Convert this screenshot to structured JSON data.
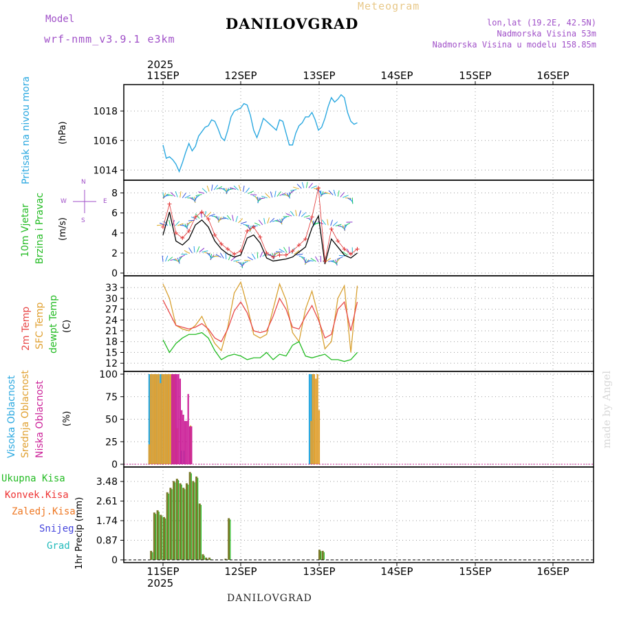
{
  "header": {
    "model_label": "Model",
    "model_name": "wrf-nmm_v3.9.1 e3km",
    "title": "DANILOVGRAD",
    "subtitle": "Meteogram",
    "lonlat": "lon,lat (19.2E, 42.5N)",
    "elevation": "Nadmorska Visina 53m",
    "model_elevation": "Nadmorska Visina u modelu 158.85m",
    "year_top": "2025",
    "year_bottom": "2025",
    "footer_title": "DANILOVGRAD",
    "watermark": "made by Angel"
  },
  "colors": {
    "pressure": "#2aa8e0",
    "wind_label": "#22bb22",
    "wind_line": "#000000",
    "gust_marker": "#e03030",
    "temp2m": "#e84848",
    "sfc_temp": "#d8a030",
    "dewpt": "#22bb22",
    "cloud_high": "#2aa8e0",
    "cloud_mid": "#e0a030",
    "cloud_low": "#cc2299",
    "rain_total": "#22bb22",
    "rain_conv": "#ee3333",
    "rain_frz": "#ee7722",
    "snow": "#4444dd",
    "grad": "#22bbbb",
    "bar": "#7a7a2a",
    "purple": "#a050c8"
  },
  "days": [
    "11SEP",
    "12SEP",
    "13SEP",
    "14SEP",
    "15SEP",
    "16SEP"
  ],
  "panel_labels": {
    "pressure": [
      "Pritisak na nivou mora"
    ],
    "pressure_unit": "(hPa)",
    "wind": [
      "10m Vjetar",
      "Brzina i Pravac"
    ],
    "wind_unit": "(m/s)",
    "temp": [
      "2m Temp",
      "SFC Temp",
      "dewpt Temp"
    ],
    "temp_unit": "(C)",
    "cloud": [
      "Visoka Oblacnost",
      "Srednja Oblacnost",
      "Niska Oblacnost"
    ],
    "cloud_unit": "(%)",
    "precip": [
      "Ukupna Kisa",
      "Konvek.Kisa",
      "Zaledj.Kisa",
      "Snijeg",
      "Grad"
    ],
    "precip_unit": "1hr Precip (mm)",
    "compass": [
      "N",
      "W",
      "E",
      "S"
    ]
  },
  "chart_data": [
    {
      "type": "line",
      "title": "Pritisak na nivou mora",
      "ylabel": "(hPa)",
      "ylim": [
        1013.5,
        1019.6
      ],
      "yticks": [
        1014,
        1016,
        1018
      ],
      "x_hours_range": [
        12,
        72
      ],
      "series": [
        {
          "name": "Pressure",
          "x": [
            12,
            13,
            14,
            15,
            16,
            17,
            18,
            19,
            20,
            21,
            22,
            23,
            24,
            25,
            26,
            27,
            28,
            29,
            30,
            31,
            32,
            33,
            34,
            35,
            36,
            37,
            38,
            39,
            40,
            41,
            42,
            43,
            44,
            45,
            46,
            47,
            48,
            49,
            50,
            51,
            52,
            53,
            54,
            55,
            56,
            57,
            58,
            59,
            60,
            61,
            62,
            63,
            64,
            65,
            66,
            67,
            68,
            69,
            70,
            71,
            72
          ],
          "values": [
            1015.7,
            1014.8,
            1014.9,
            1014.7,
            1014.4,
            1013.9,
            1014.5,
            1015.2,
            1015.8,
            1015.3,
            1015.6,
            1016.3,
            1016.6,
            1016.9,
            1017.0,
            1017.4,
            1017.3,
            1016.8,
            1016.2,
            1016.0,
            1016.7,
            1017.6,
            1018.0,
            1018.1,
            1018.2,
            1018.5,
            1018.4,
            1017.7,
            1016.7,
            1016.2,
            1016.8,
            1017.5,
            1017.3,
            1017.1,
            1016.9,
            1016.7,
            1017.4,
            1017.3,
            1016.5,
            1015.7,
            1015.7,
            1016.5,
            1017.0,
            1017.2,
            1017.6,
            1017.6,
            1017.9,
            1017.4,
            1016.7,
            1016.9,
            1017.5,
            1018.3,
            1018.9,
            1018.6,
            1018.8,
            1019.1,
            1018.9,
            1017.9,
            1017.3,
            1017.1,
            1017.2
          ]
        }
      ]
    },
    {
      "type": "line",
      "title": "10m Vjetar Brzina i Pravac",
      "ylabel": "(m/s)",
      "ylim": [
        0,
        9.0
      ],
      "yticks": [
        0,
        2,
        4,
        6,
        8
      ],
      "series": [
        {
          "name": "Wind speed",
          "x": [
            12,
            14,
            16,
            18,
            20,
            22,
            24,
            26,
            28,
            30,
            32,
            34,
            36,
            38,
            40,
            42,
            44,
            46,
            48,
            50,
            52,
            54,
            56,
            58,
            60,
            62,
            64,
            66,
            68,
            70,
            72
          ],
          "values": [
            3.8,
            6.1,
            3.2,
            2.8,
            3.4,
            4.8,
            5.3,
            4.6,
            3.2,
            2.4,
            1.9,
            1.6,
            1.8,
            3.5,
            3.8,
            3.0,
            1.5,
            1.2,
            1.3,
            1.4,
            1.6,
            2.1,
            2.6,
            4.5,
            5.7,
            0.9,
            3.4,
            2.6,
            1.8,
            1.5,
            2.0
          ]
        },
        {
          "name": "Wind gust",
          "x": [
            12,
            14,
            16,
            18,
            20,
            22,
            24,
            26,
            28,
            30,
            32,
            34,
            36,
            38,
            40,
            42,
            44,
            46,
            48,
            50,
            52,
            54,
            56,
            58,
            60,
            62,
            64,
            66,
            68,
            70,
            72
          ],
          "values": [
            4.6,
            6.9,
            4.0,
            3.5,
            4.2,
            5.6,
            6.1,
            5.4,
            3.8,
            2.9,
            2.4,
            1.9,
            2.2,
            4.2,
            4.6,
            3.6,
            2.0,
            1.6,
            1.8,
            1.8,
            2.2,
            2.8,
            3.4,
            5.6,
            8.5,
            1.2,
            4.4,
            3.2,
            2.4,
            1.9,
            2.4
          ]
        }
      ]
    },
    {
      "type": "line",
      "title": "2m Temp / SFC Temp / dewpt Temp",
      "ylabel": "(C)",
      "ylim": [
        10.5,
        35.5
      ],
      "yticks": [
        12,
        15,
        18,
        21,
        24,
        27,
        30,
        33
      ],
      "series": [
        {
          "name": "2m Temp",
          "x": [
            12,
            14,
            16,
            18,
            20,
            22,
            24,
            26,
            28,
            30,
            32,
            34,
            36,
            38,
            40,
            42,
            44,
            46,
            48,
            50,
            52,
            54,
            56,
            58,
            60,
            62,
            64,
            66,
            68,
            70,
            72
          ],
          "values": [
            29.5,
            26.0,
            22.5,
            22.0,
            21.5,
            22.0,
            23.0,
            21.5,
            19.0,
            18.0,
            21.5,
            26.5,
            29.0,
            26.0,
            21.0,
            20.5,
            21.0,
            25.0,
            30.0,
            27.0,
            22.0,
            21.5,
            25.0,
            28.0,
            24.0,
            19.0,
            20.0,
            27.0,
            29.0,
            21.0,
            29.0
          ]
        },
        {
          "name": "SFC Temp",
          "x": [
            12,
            14,
            16,
            18,
            20,
            22,
            24,
            26,
            28,
            30,
            32,
            34,
            36,
            38,
            40,
            42,
            44,
            46,
            48,
            50,
            52,
            54,
            56,
            58,
            60,
            62,
            64,
            66,
            68,
            70,
            72
          ],
          "values": [
            34.0,
            30.0,
            22.5,
            21.5,
            21.0,
            22.5,
            25.0,
            21.0,
            17.5,
            15.5,
            22.0,
            31.5,
            34.5,
            28.0,
            20.0,
            19.0,
            20.0,
            27.0,
            34.0,
            29.5,
            20.5,
            18.0,
            27.0,
            32.0,
            25.0,
            16.0,
            18.0,
            30.0,
            33.5,
            15.0,
            33.5
          ]
        },
        {
          "name": "dewpt Temp",
          "x": [
            12,
            14,
            16,
            18,
            20,
            22,
            24,
            26,
            28,
            30,
            32,
            34,
            36,
            38,
            40,
            42,
            44,
            46,
            48,
            50,
            52,
            54,
            56,
            58,
            60,
            62,
            64,
            66,
            68,
            70,
            72
          ],
          "values": [
            18.5,
            15.0,
            17.5,
            19.0,
            20.0,
            20.0,
            20.5,
            19.0,
            15.5,
            13.0,
            14.0,
            14.5,
            14.0,
            13.0,
            13.5,
            13.5,
            15.0,
            13.0,
            14.5,
            14.0,
            17.0,
            18.0,
            14.0,
            13.5,
            14.0,
            14.5,
            13.0,
            13.0,
            12.5,
            13.0,
            15.0
          ]
        }
      ]
    },
    {
      "type": "bar",
      "title": "Visoka / Srednja / Niska Oblacnost",
      "ylabel": "(%)",
      "ylim": [
        0,
        100
      ],
      "yticks": [
        0,
        25,
        50,
        75,
        100
      ],
      "series": [
        {
          "name": "Visoka Oblacnost",
          "x": [
            1.5,
            2.0,
            2.5,
            3.0,
            3.5,
            4.0,
            4.5,
            5.0,
            5.5,
            6.0,
            6.5,
            7.0,
            7.5,
            8.0,
            8.5,
            9.0,
            9.5,
            11.5,
            12.5,
            51.0,
            51.5,
            52.0
          ],
          "values": [
            100,
            100,
            100,
            100,
            100,
            100,
            100,
            100,
            100,
            100,
            100,
            100,
            100,
            100,
            100,
            100,
            100,
            15,
            15,
            100,
            100,
            100
          ]
        },
        {
          "name": "Srednja Oblacnost",
          "x": [
            1.2,
            1.7,
            2.2,
            2.7,
            3.2,
            3.7,
            4.2,
            4.7,
            5.2,
            5.7,
            6.2,
            6.7,
            7.2,
            7.7,
            8.2,
            8.7,
            9.2,
            9.7,
            10.2,
            14.0,
            51.2,
            51.7,
            52.2,
            52.7,
            53.2,
            53.7
          ],
          "values": [
            22,
            100,
            100,
            100,
            100,
            100,
            100,
            90,
            100,
            100,
            100,
            100,
            100,
            100,
            100,
            100,
            100,
            40,
            40,
            43,
            48,
            100,
            100,
            95,
            100,
            60
          ]
        },
        {
          "name": "Niska Oblacnost",
          "x": [
            8.0,
            8.5,
            9.0,
            9.5,
            10.0,
            10.5,
            11.0,
            11.5,
            12.0,
            12.5,
            13.0,
            13.5,
            14.0
          ],
          "values": [
            100,
            100,
            100,
            100,
            100,
            95,
            60,
            55,
            48,
            48,
            78,
            42,
            42
          ]
        }
      ]
    },
    {
      "type": "bar",
      "title": "1hr Precip",
      "ylabel": "1hr Precip (mm)",
      "ylim": [
        0,
        4.0
      ],
      "yticks": [
        0,
        0.87,
        1.74,
        2.61,
        3.48
      ],
      "series": [
        {
          "name": "Ukupna Kisa",
          "x": [
            2,
            3,
            4,
            5,
            6,
            7,
            8,
            9,
            10,
            11,
            12,
            13,
            14,
            15,
            16,
            17,
            18,
            19,
            20,
            25,
            26,
            54,
            55
          ],
          "values": [
            0.4,
            2.1,
            2.2,
            2.0,
            1.9,
            3.0,
            3.2,
            3.5,
            3.6,
            3.4,
            3.2,
            3.4,
            3.9,
            3.5,
            3.7,
            2.5,
            0.25,
            0.1,
            0.1,
            0.05,
            1.85,
            0.45,
            0.4
          ]
        }
      ]
    }
  ]
}
